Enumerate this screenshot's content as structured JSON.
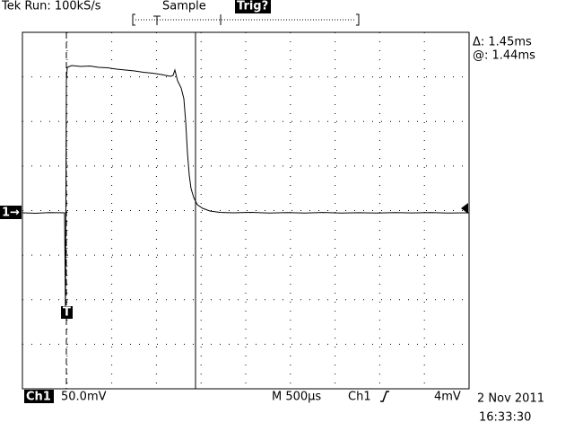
{
  "header": {
    "status": "Tek Run: 100kS/s",
    "mode": "Sample",
    "trigger_state": "Trig?"
  },
  "cursor_readout": {
    "delta": "Δ: 1.45ms",
    "at": "@: 1.44ms"
  },
  "markers": {
    "channel": "1→",
    "trigger": "T"
  },
  "footer": {
    "channel": "Ch1",
    "scale": "50.0mV",
    "timebase": "M  500µs",
    "trigger_source": "Ch1",
    "trigger_level": "4mV",
    "date": "2 Nov 2011",
    "time": "16:33:30"
  }
}
